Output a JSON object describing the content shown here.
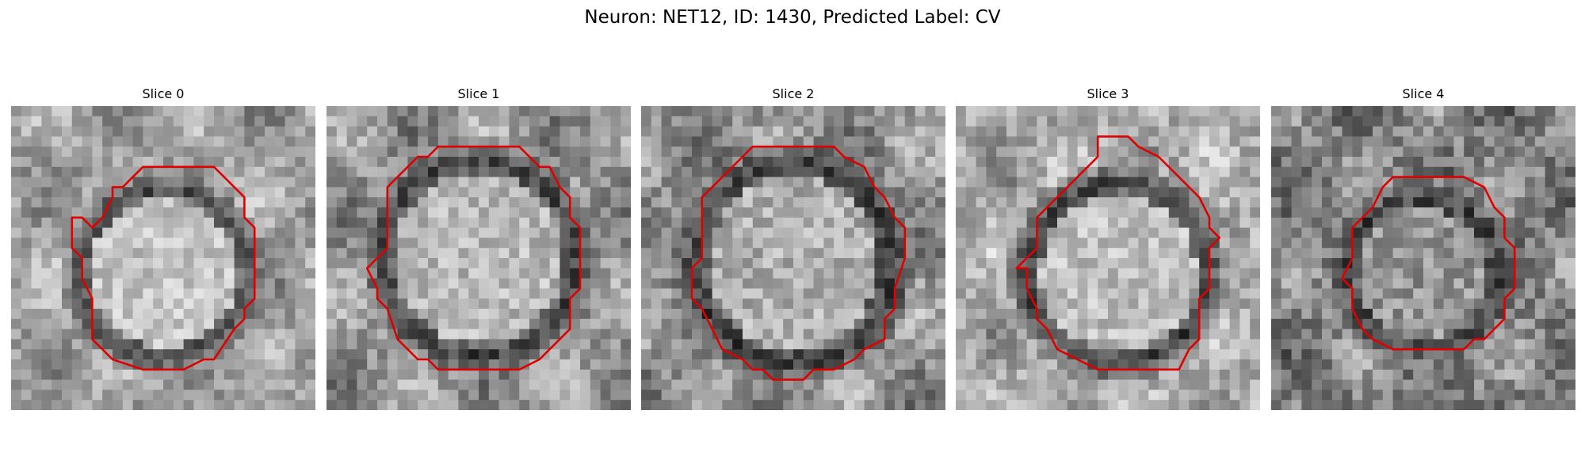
{
  "figure": {
    "title": "Neuron: NET12, ID: 1430, Predicted Label: CV"
  },
  "panels": [
    {
      "title": "Slice 0"
    },
    {
      "title": "Slice 1"
    },
    {
      "title": "Slice 2"
    },
    {
      "title": "Slice 3"
    },
    {
      "title": "Slice 4"
    }
  ],
  "colors": {
    "contour": "#e00000",
    "background": "#ffffff"
  }
}
